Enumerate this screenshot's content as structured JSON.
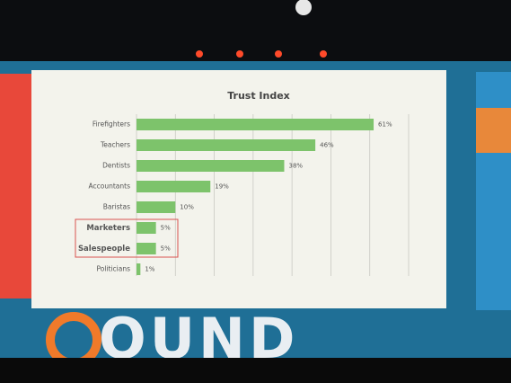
{
  "chart_data": {
    "type": "bar",
    "orientation": "horizontal",
    "title": "Trust Index",
    "categories": [
      "Firefighters",
      "Teachers",
      "Dentists",
      "Accountants",
      "Baristas",
      "Marketers",
      "Salespeople",
      "Politicians"
    ],
    "values": [
      61,
      46,
      38,
      19,
      10,
      5,
      5,
      1
    ],
    "value_labels": [
      "61%",
      "46%",
      "38%",
      "19%",
      "10%",
      "5%",
      "5%",
      "1%"
    ],
    "color": "#7dc36b",
    "xlim": [
      0,
      70
    ],
    "xticks": [
      0,
      10,
      20,
      30,
      40,
      50,
      60,
      70
    ],
    "grid": true,
    "highlight_indices": [
      5,
      6
    ],
    "highlight_color": "#d9534f"
  },
  "stage_sign": "OUND"
}
